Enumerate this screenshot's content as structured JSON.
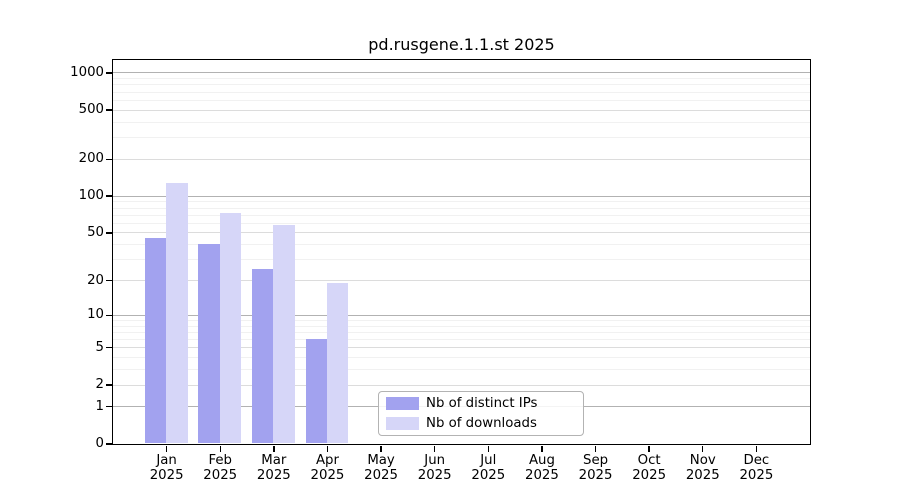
{
  "title": "pd.rusgene.1.1.st 2025",
  "chart_data": {
    "type": "bar",
    "title": "pd.rusgene.1.1.st 2025",
    "x_categories": [
      "Jan",
      "Feb",
      "Mar",
      "Apr",
      "May",
      "Jun",
      "Jul",
      "Aug",
      "Sep",
      "Oct",
      "Nov",
      "Dec"
    ],
    "x_year": "2025",
    "series": [
      {
        "name": "Nb of distinct IPs",
        "color": "#a2a2ef",
        "values": [
          45,
          40,
          25,
          6,
          0,
          0,
          0,
          0,
          0,
          0,
          0,
          0
        ]
      },
      {
        "name": "Nb of downloads",
        "color": "#d6d6f8",
        "values": [
          127,
          72,
          57,
          19,
          0,
          0,
          0,
          0,
          0,
          0,
          0,
          0
        ]
      }
    ],
    "y_scale": "log10(1+x)",
    "y_ticks": [
      0,
      1,
      2,
      5,
      10,
      20,
      50,
      100,
      200,
      500,
      1000
    ],
    "y_minor_ticks": [
      3,
      4,
      6,
      7,
      8,
      9,
      30,
      40,
      60,
      70,
      80,
      90,
      300,
      400,
      600,
      700,
      800,
      900
    ],
    "ylim": [
      0,
      1290
    ],
    "grid": true,
    "legend_position": "bottom-center"
  },
  "colors": {
    "bar_ips": "#a2a2ef",
    "bar_downloads": "#d6d6f8",
    "grid_major": "#dcdcdc",
    "grid_power10": "#b2b2b2",
    "grid_minor": "#f1f1f1",
    "axis": "#000000"
  }
}
